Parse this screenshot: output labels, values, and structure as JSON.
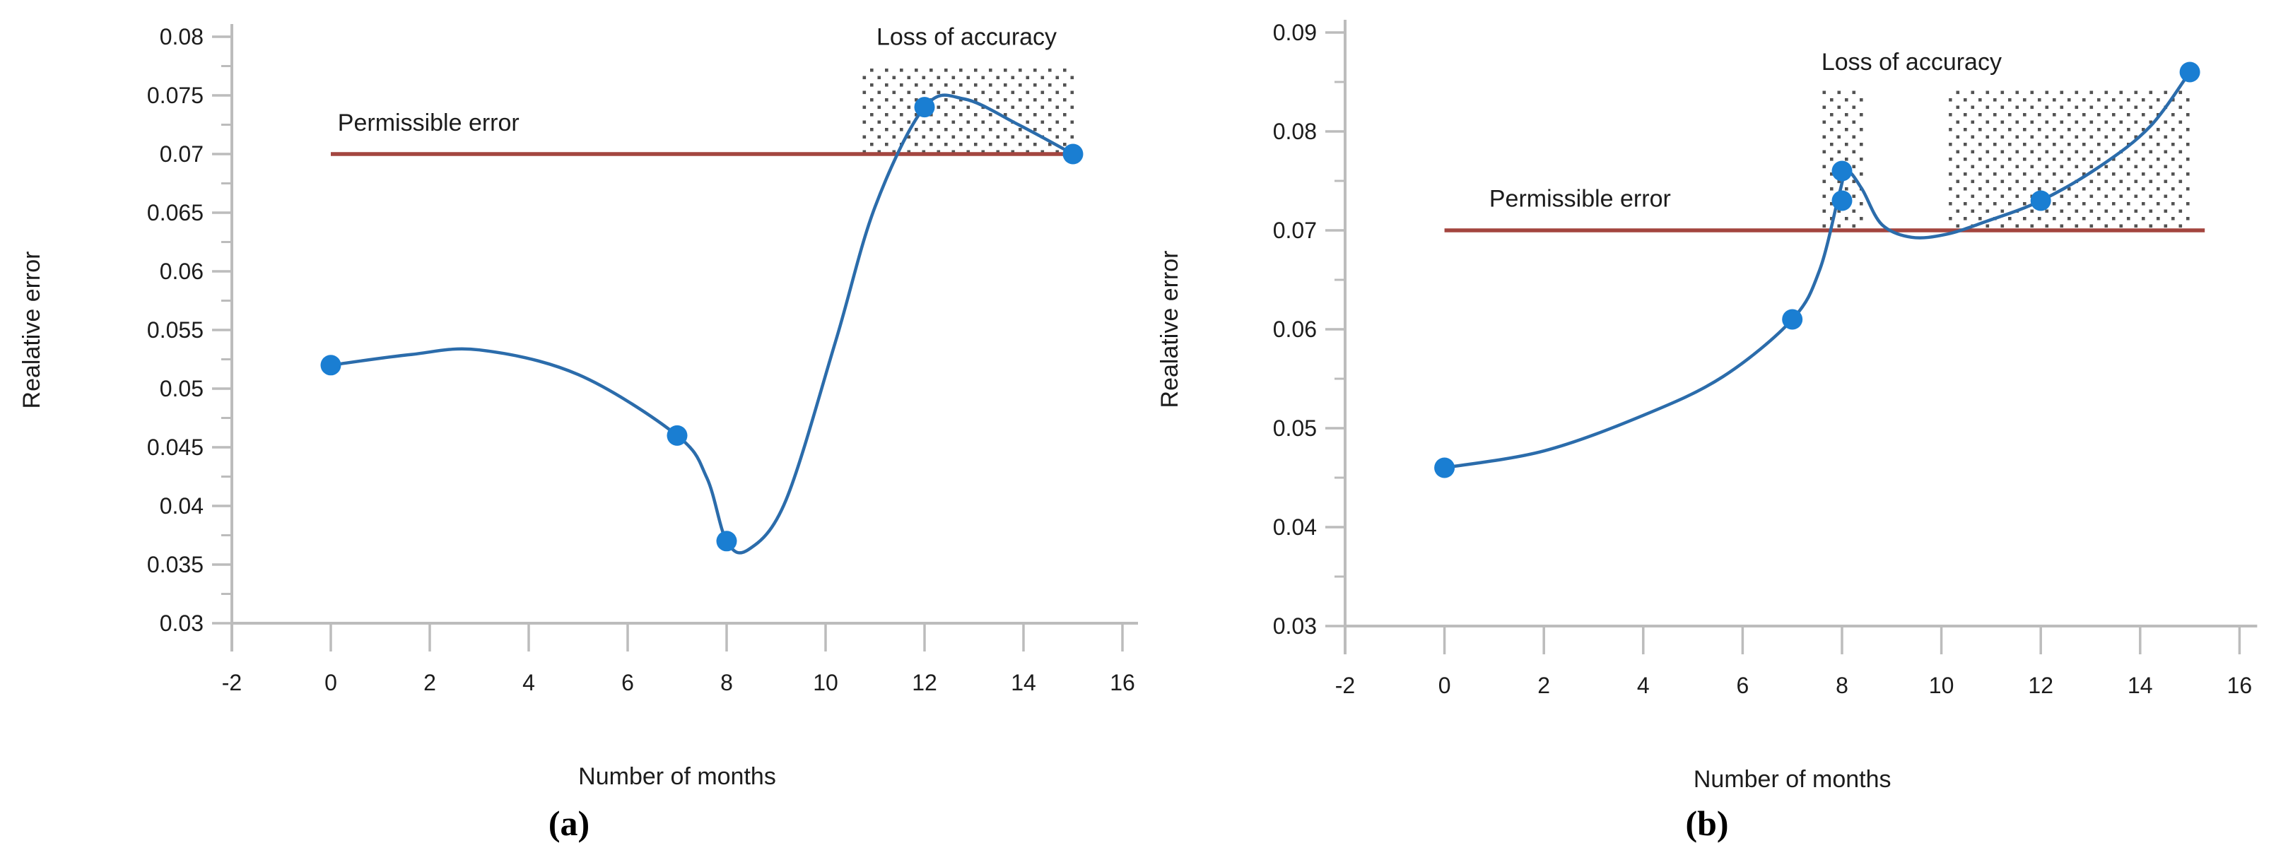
{
  "figure": {
    "description": "Two-panel line chart figure of relative error versus number of months",
    "colors": {
      "curve": "#2b6cab",
      "marker": "#1a7ed2",
      "permissible_line": "#a3453f",
      "axis": "#bcbcbc",
      "text": "#1c1c1c",
      "pattern_dot": "#333333"
    }
  },
  "chart_data": [
    {
      "panel": "a",
      "caption": "(a)",
      "type": "line",
      "xlabel": "Number of months",
      "ylabel": "Realative error",
      "xlim": [
        -2,
        16
      ],
      "ylim": [
        0.03,
        0.08
      ],
      "grid": false,
      "legend_visible": false,
      "x_ticks": [
        -2,
        0,
        2,
        4,
        6,
        8,
        10,
        12,
        14,
        16
      ],
      "x_tick_labels": [
        "-2",
        "0",
        "2",
        "4",
        "6",
        "8",
        "10",
        "12",
        "14",
        "16"
      ],
      "y_major_ticks": [
        0.03,
        0.035,
        0.04,
        0.045,
        0.05,
        0.055,
        0.06,
        0.065,
        0.07,
        0.075,
        0.08
      ],
      "y_tick_labels": [
        "0.03",
        "0.035",
        "0.04",
        "0.045",
        "0.05",
        "0.055",
        "0.06",
        "0.065",
        "0.07",
        "0.075",
        "0.08"
      ],
      "y_minor_ticks": [
        0.0325,
        0.0375,
        0.0425,
        0.0475,
        0.0525,
        0.0575,
        0.0625,
        0.0675,
        0.0725,
        0.0775
      ],
      "series": [
        {
          "name": "Relative error",
          "x": [
            0,
            7,
            8,
            12,
            15
          ],
          "y": [
            0.052,
            0.046,
            0.037,
            0.074,
            0.07
          ]
        }
      ],
      "curve_guides": [
        [
          0,
          0.052
        ],
        [
          1.6,
          0.0529
        ],
        [
          3,
          0.0533
        ],
        [
          5,
          0.0512
        ],
        [
          7,
          0.046
        ],
        [
          7.6,
          0.0424
        ],
        [
          8,
          0.037
        ],
        [
          8.45,
          0.0363
        ],
        [
          9.2,
          0.0405
        ],
        [
          10.2,
          0.054
        ],
        [
          11,
          0.0655
        ],
        [
          12,
          0.074
        ],
        [
          12.8,
          0.0747
        ],
        [
          13.9,
          0.0725
        ],
        [
          15,
          0.07
        ]
      ],
      "permissible_line": {
        "value": 0.07,
        "x_start": 0,
        "x_end": 15,
        "label": "Permissible error",
        "label_x": 0.14,
        "label_y": 0.072
      },
      "loss_regions": [
        {
          "x0": 10.7,
          "x1": 15.1,
          "y0": 0.07,
          "y1": 0.0775
        }
      ],
      "loss_label": {
        "text": "Loss of accuracy",
        "x": 12.85,
        "y": 0.0793
      }
    },
    {
      "panel": "b",
      "caption": "(b)",
      "type": "line",
      "xlabel": "Number of months",
      "ylabel": "Realative error",
      "xlim": [
        -2,
        16
      ],
      "ylim": [
        0.03,
        0.09
      ],
      "grid": false,
      "legend_visible": false,
      "x_ticks": [
        -2,
        0,
        2,
        4,
        6,
        8,
        10,
        12,
        14,
        16
      ],
      "x_tick_labels": [
        "-2",
        "0",
        "2",
        "4",
        "6",
        "8",
        "10",
        "12",
        "14",
        "16"
      ],
      "y_major_ticks": [
        0.03,
        0.04,
        0.05,
        0.06,
        0.07,
        0.08,
        0.09
      ],
      "y_tick_labels": [
        "0.03",
        "0.04",
        "0.05",
        "0.06",
        "0.07",
        "0.08",
        "0.09"
      ],
      "y_minor_ticks": [
        0.035,
        0.045,
        0.055,
        0.065,
        0.075,
        0.085
      ],
      "series": [
        {
          "name": "Relative error",
          "x": [
            0,
            7,
            8,
            8,
            12,
            15
          ],
          "y": [
            0.046,
            0.061,
            0.073,
            0.076,
            0.073,
            0.086
          ]
        }
      ],
      "curve_guides": [
        [
          0,
          0.046
        ],
        [
          2,
          0.0477
        ],
        [
          4,
          0.0513
        ],
        [
          5.6,
          0.0552
        ],
        [
          7,
          0.061
        ],
        [
          7.55,
          0.066
        ],
        [
          7.95,
          0.0738
        ],
        [
          8.1,
          0.076
        ],
        [
          8.4,
          0.0742
        ],
        [
          8.8,
          0.0706
        ],
        [
          9.4,
          0.0693
        ],
        [
          10.1,
          0.0696
        ],
        [
          10.9,
          0.0709
        ],
        [
          12,
          0.073
        ],
        [
          13.2,
          0.0765
        ],
        [
          14.2,
          0.0805
        ],
        [
          15,
          0.086
        ]
      ],
      "permissible_line": {
        "value": 0.07,
        "x_start": 0,
        "x_end": 15.3,
        "label": "Permissible error",
        "label_x": 0.9,
        "label_y": 0.0724
      },
      "loss_regions": [
        {
          "x0": 7.55,
          "x1": 8.45,
          "y0": 0.07,
          "y1": 0.0845
        },
        {
          "x0": 10.15,
          "x1": 15.05,
          "y0": 0.07,
          "y1": 0.0845
        }
      ],
      "loss_label": {
        "text": "Loss of accuracy",
        "x": 9.4,
        "y": 0.0862
      }
    }
  ]
}
